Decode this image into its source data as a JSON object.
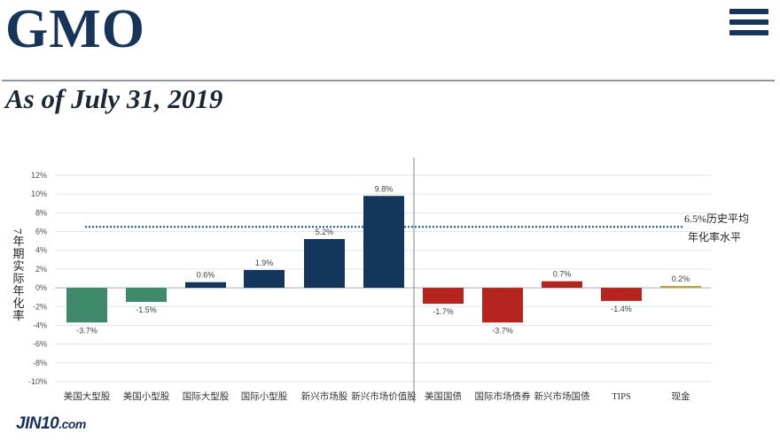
{
  "header": {
    "logo_text": "GMO",
    "menu_icon": "hamburger-menu-icon",
    "date_text": "As of July 31, 2019"
  },
  "chart_data": {
    "type": "bar",
    "ylabel": "7年期实际年化率",
    "ylim": [
      -10,
      12
    ],
    "yticks": [
      12,
      10,
      8,
      6,
      4,
      2,
      0,
      -2,
      -4,
      -6,
      -8,
      -10
    ],
    "ytick_labels": [
      "12%",
      "10%",
      "8%",
      "6%",
      "4%",
      "2%",
      "0%",
      "-2%",
      "-4%",
      "-6%",
      "-8%",
      "-10%"
    ],
    "grid": true,
    "categories": [
      "美国大型股",
      "美国小型股",
      "国际大型股",
      "国际小型股",
      "新兴市场股",
      "新兴市场价值股",
      "美国国债",
      "国际市场债券",
      "新兴市场国债",
      "TIPS",
      "现金"
    ],
    "values": [
      -3.7,
      -1.5,
      0.6,
      1.9,
      5.2,
      9.8,
      -1.7,
      -3.7,
      0.7,
      -1.4,
      0.2
    ],
    "value_labels": [
      "-3.7%",
      "-1.5%",
      "0.6%",
      "1.9%",
      "5.2%",
      "9.8%",
      "-1.7%",
      "-3.7%",
      "0.7%",
      "-1.4%",
      "0.2%"
    ],
    "colors": [
      "#3e8a6b",
      "#3e8a6b",
      "#14365c",
      "#14365c",
      "#14365c",
      "#14365c",
      "#b5241e",
      "#b5241e",
      "#b5241e",
      "#b5241e",
      "#c8a034"
    ],
    "reference_line": {
      "value": 6.5,
      "label_line1": "6.5%历史平均",
      "label_line2": "年化率水平",
      "color": "#1c4f86"
    }
  },
  "footer": {
    "brand": "JIN10",
    "suffix": ".com"
  }
}
